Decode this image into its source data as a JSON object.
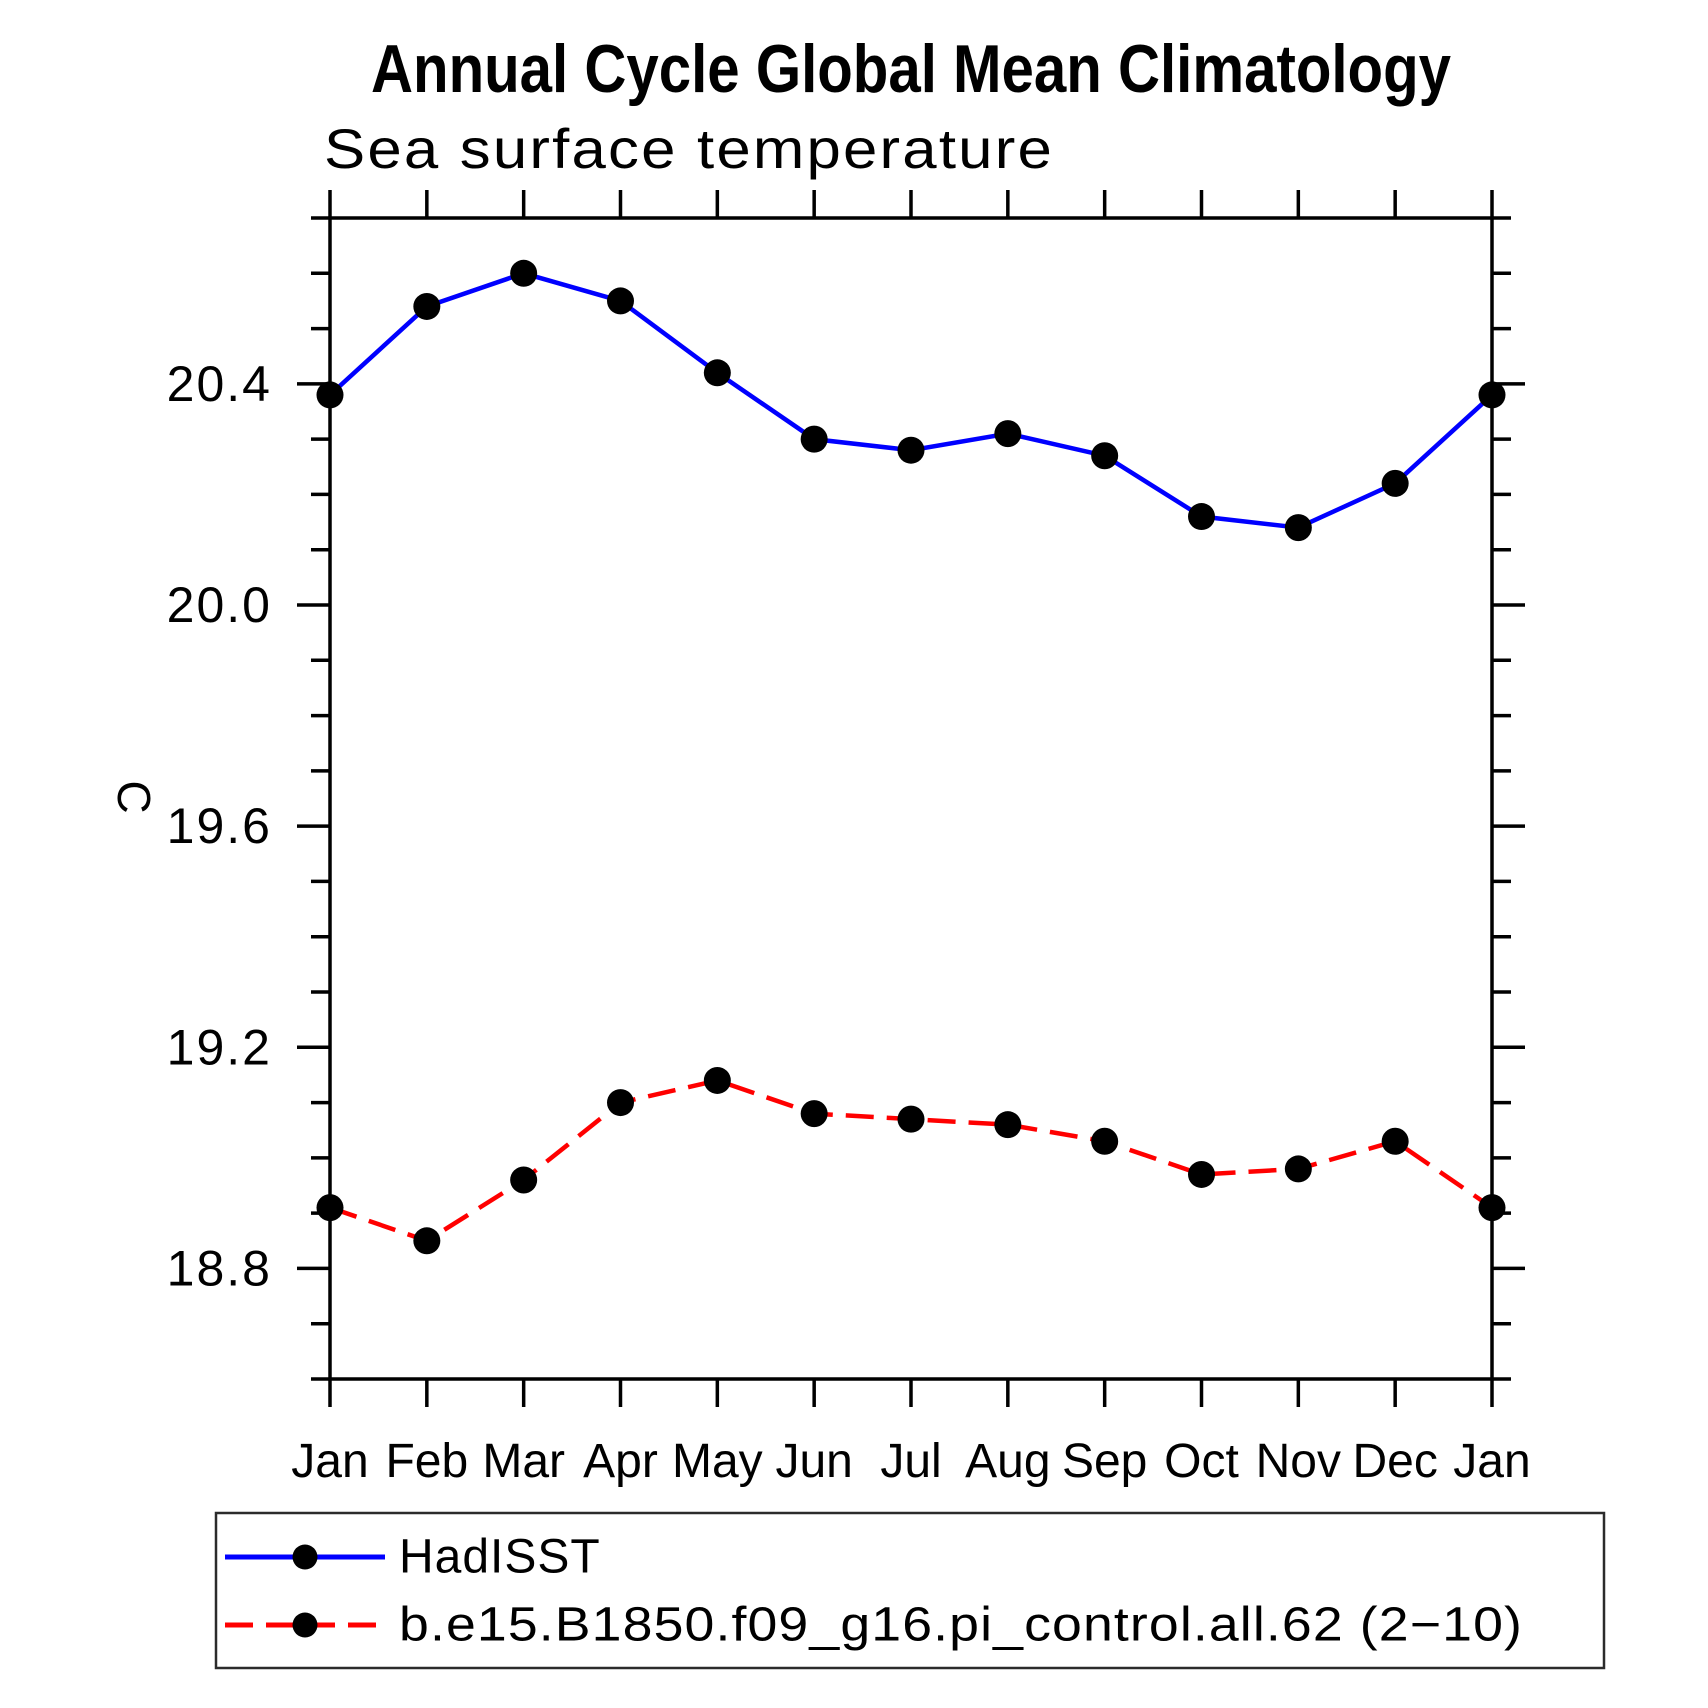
{
  "title": "Annual Cycle Global Mean Climatology",
  "subtitle": "Sea surface temperature",
  "chart_data": {
    "type": "line",
    "title": "Annual Cycle Global Mean Climatology",
    "subtitle": "Sea surface temperature",
    "xlabel": "",
    "ylabel": "C",
    "x_categories": [
      "Jan",
      "Feb",
      "Mar",
      "Apr",
      "May",
      "Jun",
      "Jul",
      "Aug",
      "Sep",
      "Oct",
      "Nov",
      "Dec",
      "Jan"
    ],
    "ylim": [
      18.6,
      20.7
    ],
    "yticks_major": [
      18.8,
      19.2,
      19.6,
      20.0,
      20.4
    ],
    "ytick_labels": [
      "18.8",
      "19.2",
      "19.6",
      "20.0",
      "20.4"
    ],
    "ytick_minor_step": 0.1,
    "grid": "off",
    "legend_position": "bottom-left-box",
    "marker_color": "#000000",
    "series": [
      {
        "name": "HadISST",
        "color": "#0000ff",
        "line_style": "solid",
        "marker": "filled-circle",
        "values": [
          20.38,
          20.54,
          20.6,
          20.55,
          20.42,
          20.3,
          20.28,
          20.31,
          20.27,
          20.16,
          20.14,
          20.22,
          20.38
        ]
      },
      {
        "name": "b.e15.B1850.f09_g16.pi_control.all.62 (2−10)",
        "color": "#ff0000",
        "line_style": "dashed",
        "marker": "filled-circle",
        "values": [
          18.91,
          18.85,
          18.96,
          19.1,
          19.14,
          19.08,
          19.07,
          19.06,
          19.03,
          18.97,
          18.98,
          19.03,
          18.91
        ]
      }
    ]
  },
  "legend": {
    "entries": [
      {
        "label": "HadISST"
      },
      {
        "label": "b.e15.B1850.f09_g16.pi_control.all.62 (2−10)"
      }
    ]
  }
}
